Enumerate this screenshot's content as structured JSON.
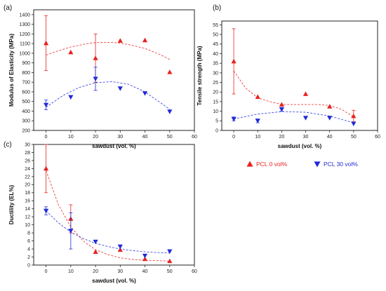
{
  "colors": {
    "series_a": "#e8211f",
    "series_b": "#1f2bd6",
    "axis": "#222222"
  },
  "legend": [
    {
      "label": "PCL  0 vol%",
      "color": "#e8211f",
      "marker": "triangle-up"
    },
    {
      "label": "PCL 30 vol%",
      "color": "#1f2bd6",
      "marker": "triangle-down"
    }
  ],
  "chart_data": [
    {
      "panel_label": "(a)",
      "type": "scatter",
      "xlabel": "sawdust (vol. %)",
      "ylabel": "Modulus of Elasticity (MPa)",
      "xlim": [
        -5,
        60
      ],
      "ylim": [
        200,
        1450
      ],
      "xticks": [
        0,
        10,
        20,
        30,
        40,
        50,
        60
      ],
      "yticks": [
        200,
        300,
        400,
        500,
        600,
        700,
        800,
        900,
        1000,
        1100,
        1200,
        1300,
        1400
      ],
      "series": [
        {
          "name": "PCL  0 vol%",
          "x": [
            0,
            10,
            20,
            30,
            40,
            50
          ],
          "values": [
            1105,
            1010,
            950,
            1130,
            1135,
            805
          ],
          "error": [
            285,
            0,
            250,
            0,
            0,
            0
          ],
          "trend": [
            0.0,
            3.3,
            10.0,
            16.7,
            20.0,
            26.7,
            30.0,
            33.3,
            40.0,
            46.7,
            50.0
          ],
          "trend_y": [
            980,
            1012,
            1065,
            1100,
            1110,
            1113,
            1105,
            1090,
            1050,
            980,
            935
          ]
        },
        {
          "name": "PCL 30 vol%",
          "x": [
            0,
            10,
            20,
            30,
            40,
            50
          ],
          "values": [
            465,
            545,
            735,
            635,
            585,
            395
          ],
          "error": [
            50,
            0,
            120,
            0,
            0,
            0
          ],
          "trend": [
            0.0,
            6.7,
            13.3,
            20.0,
            26.7,
            33.3,
            40.0,
            46.7,
            50.0
          ],
          "trend_y": [
            440,
            560,
            645,
            695,
            705,
            680,
            600,
            480,
            420
          ]
        }
      ]
    },
    {
      "panel_label": "(b)",
      "type": "scatter",
      "xlabel": "sawdust (vol. %)",
      "ylabel": "Tensile strength (MPa)",
      "xlim": [
        -5,
        60
      ],
      "ylim": [
        0,
        57
      ],
      "xticks": [
        0,
        10,
        20,
        30,
        40,
        50,
        60
      ],
      "yticks": [
        0,
        5,
        10,
        15,
        20,
        25,
        30,
        35,
        40,
        45,
        50,
        55
      ],
      "series": [
        {
          "name": "PCL  0 vol%",
          "x": [
            0,
            10,
            20,
            30,
            40,
            50
          ],
          "values": [
            36,
            17.5,
            13.5,
            19,
            12.5,
            7.5
          ],
          "error": [
            17,
            0,
            0,
            0,
            0,
            3
          ],
          "trend": [
            0.0,
            5.0,
            10.0,
            15.0,
            20.0,
            25.0,
            30.0,
            35.0,
            40.0,
            45.0,
            50.0
          ],
          "trend_y": [
            31,
            22,
            17,
            15,
            13.5,
            13.5,
            13.5,
            13.5,
            13,
            11,
            7
          ]
        },
        {
          "name": "PCL 30 vol%",
          "x": [
            0,
            10,
            20,
            30,
            40,
            50
          ],
          "values": [
            6,
            5,
            11,
            6.5,
            6.5,
            3.5
          ],
          "error": [
            1,
            1,
            1,
            0,
            0,
            0
          ],
          "trend": [
            0.0,
            10.0,
            20.0,
            30.0,
            40.0,
            50.0
          ],
          "trend_y": [
            6,
            8.5,
            9.8,
            9.5,
            7.5,
            4
          ]
        }
      ]
    },
    {
      "panel_label": "(c)",
      "type": "scatter",
      "xlabel": "sawdust (vol. %)",
      "ylabel": "Ductility (EL%)",
      "xlim": [
        -5,
        60
      ],
      "ylim": [
        0,
        30
      ],
      "xticks": [
        0,
        10,
        20,
        30,
        40,
        50,
        60
      ],
      "yticks": [
        0,
        2,
        4,
        6,
        8,
        10,
        12,
        14,
        16,
        18,
        20,
        22,
        24,
        26,
        28,
        30
      ],
      "series": [
        {
          "name": "PCL  0 vol%",
          "x": [
            0,
            10,
            20,
            30,
            40,
            50
          ],
          "values": [
            24,
            11.5,
            3.3,
            3.8,
            1.5,
            1.0
          ],
          "error": [
            6,
            3.5,
            0,
            0,
            0,
            0
          ],
          "trend": [
            0.0,
            5.0,
            10.0,
            15.0,
            20.0,
            25.0,
            30.0,
            35.0,
            40.0,
            45.0,
            50.0
          ],
          "trend_y": [
            23.5,
            15,
            9.5,
            6,
            3.8,
            2.6,
            1.8,
            1.4,
            1.2,
            1.1,
            1.0
          ]
        },
        {
          "name": "PCL 30 vol%",
          "x": [
            0,
            10,
            20,
            30,
            40,
            50
          ],
          "values": [
            13.5,
            8.5,
            5.8,
            4.6,
            2.3,
            3.4
          ],
          "error": [
            1,
            4.5,
            0,
            0,
            0,
            0
          ],
          "trend": [
            0.0,
            5.0,
            10.0,
            15.0,
            20.0,
            25.0,
            30.0,
            35.0,
            40.0,
            45.0,
            50.0
          ],
          "trend_y": [
            13.5,
            10.5,
            8.2,
            6.6,
            5.4,
            4.6,
            4.0,
            3.6,
            3.3,
            3.1,
            3.0
          ]
        }
      ]
    }
  ]
}
